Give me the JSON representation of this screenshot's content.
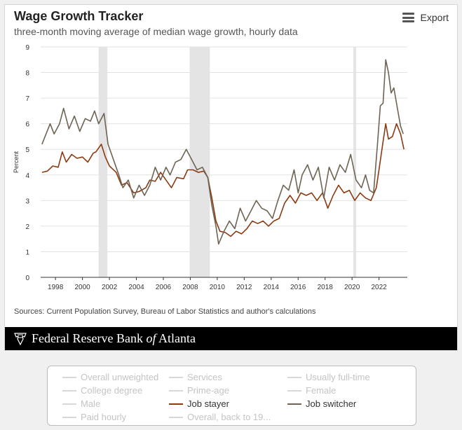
{
  "header": {
    "title": "Wage Growth Tracker",
    "subtitle": "three-month moving average of median wage growth, hourly data",
    "export_label": "Export"
  },
  "sources": "Sources: Current Population Survey, Bureau of Labor Statistics and author's calculations",
  "footer": {
    "brand_pre": "Federal Reserve Bank",
    "brand_of": "of",
    "brand_post": "Atlanta"
  },
  "colors": {
    "job_stayer": "#8b3a12",
    "job_switcher": "#6e6453",
    "recession": "#e4e4e4"
  },
  "legend": [
    {
      "label": "Overall unweighted",
      "active": false
    },
    {
      "label": "Services",
      "active": false
    },
    {
      "label": "Usually full-time",
      "active": false
    },
    {
      "label": "College degree",
      "active": false
    },
    {
      "label": "Prime-age",
      "active": false
    },
    {
      "label": "Female",
      "active": false
    },
    {
      "label": "Male",
      "active": false
    },
    {
      "label": "Job stayer",
      "active": true,
      "color": "#8b3a12"
    },
    {
      "label": "Job switcher",
      "active": true,
      "color": "#6e6453"
    },
    {
      "label": "Paid hourly",
      "active": false
    },
    {
      "label": "Overall, back to 19...",
      "active": false
    }
  ],
  "chart_data": {
    "type": "line",
    "ylabel": "Percent",
    "xlabel": "",
    "ylim": [
      0,
      9
    ],
    "xlim": [
      1996.9,
      2024.1
    ],
    "y_ticks": [
      "0",
      "1",
      "2",
      "3",
      "4",
      "5",
      "6",
      "7",
      "8",
      "9"
    ],
    "x_ticks": [
      "1998",
      "2000",
      "2002",
      "2004",
      "2006",
      "2008",
      "2010",
      "2012",
      "2014",
      "2016",
      "2018",
      "2020",
      "2022"
    ],
    "grid": "horizontal",
    "recessions": [
      [
        2001.2,
        2001.85
      ],
      [
        2007.95,
        2009.45
      ],
      [
        2020.1,
        2020.3
      ]
    ],
    "series": [
      {
        "name": "Job stayer",
        "color": "#8b3a12",
        "points": [
          [
            1997.0,
            4.1
          ],
          [
            1997.4,
            4.15
          ],
          [
            1997.8,
            4.35
          ],
          [
            1998.2,
            4.3
          ],
          [
            1998.5,
            4.9
          ],
          [
            1998.8,
            4.5
          ],
          [
            1999.2,
            4.8
          ],
          [
            1999.6,
            4.65
          ],
          [
            2000.0,
            4.7
          ],
          [
            2000.4,
            4.5
          ],
          [
            2000.8,
            4.85
          ],
          [
            2001.0,
            4.9
          ],
          [
            2001.4,
            5.2
          ],
          [
            2001.7,
            4.7
          ],
          [
            2002.0,
            4.35
          ],
          [
            2002.5,
            4.1
          ],
          [
            2002.9,
            3.6
          ],
          [
            2003.3,
            3.7
          ],
          [
            2003.8,
            3.3
          ],
          [
            2004.2,
            3.35
          ],
          [
            2004.7,
            3.5
          ],
          [
            2005.0,
            3.8
          ],
          [
            2005.4,
            3.75
          ],
          [
            2005.8,
            4.1
          ],
          [
            2006.2,
            3.8
          ],
          [
            2006.6,
            3.5
          ],
          [
            2007.0,
            3.9
          ],
          [
            2007.5,
            3.85
          ],
          [
            2007.8,
            4.2
          ],
          [
            2008.2,
            4.2
          ],
          [
            2008.6,
            4.1
          ],
          [
            2009.0,
            4.15
          ],
          [
            2009.3,
            3.9
          ],
          [
            2009.6,
            3.1
          ],
          [
            2009.9,
            2.2
          ],
          [
            2010.2,
            1.8
          ],
          [
            2010.6,
            1.75
          ],
          [
            2011.0,
            1.6
          ],
          [
            2011.4,
            1.8
          ],
          [
            2011.8,
            1.7
          ],
          [
            2012.2,
            1.9
          ],
          [
            2012.6,
            2.2
          ],
          [
            2013.0,
            2.1
          ],
          [
            2013.4,
            2.2
          ],
          [
            2013.8,
            2.0
          ],
          [
            2014.2,
            2.2
          ],
          [
            2014.6,
            2.3
          ],
          [
            2015.0,
            2.9
          ],
          [
            2015.4,
            3.2
          ],
          [
            2015.8,
            2.9
          ],
          [
            2016.2,
            3.3
          ],
          [
            2016.6,
            3.2
          ],
          [
            2017.0,
            3.3
          ],
          [
            2017.4,
            3.0
          ],
          [
            2017.8,
            3.3
          ],
          [
            2018.2,
            2.7
          ],
          [
            2018.6,
            3.2
          ],
          [
            2019.0,
            3.6
          ],
          [
            2019.4,
            3.3
          ],
          [
            2019.8,
            3.4
          ],
          [
            2020.2,
            3.0
          ],
          [
            2020.6,
            3.3
          ],
          [
            2021.0,
            3.1
          ],
          [
            2021.4,
            3.0
          ],
          [
            2021.8,
            3.5
          ],
          [
            2022.0,
            4.2
          ],
          [
            2022.3,
            5.3
          ],
          [
            2022.5,
            6.0
          ],
          [
            2022.7,
            5.4
          ],
          [
            2023.0,
            5.5
          ],
          [
            2023.3,
            6.0
          ],
          [
            2023.6,
            5.6
          ],
          [
            2023.85,
            5.0
          ]
        ]
      },
      {
        "name": "Job switcher",
        "color": "#6e6453",
        "points": [
          [
            1997.0,
            5.2
          ],
          [
            1997.3,
            5.6
          ],
          [
            1997.6,
            6.0
          ],
          [
            1997.9,
            5.6
          ],
          [
            1998.3,
            6.0
          ],
          [
            1998.6,
            6.6
          ],
          [
            1999.0,
            5.8
          ],
          [
            1999.4,
            6.3
          ],
          [
            1999.8,
            5.7
          ],
          [
            2000.2,
            6.2
          ],
          [
            2000.6,
            6.1
          ],
          [
            2000.9,
            6.5
          ],
          [
            2001.2,
            6.0
          ],
          [
            2001.6,
            6.4
          ],
          [
            2001.9,
            5.2
          ],
          [
            2002.3,
            4.6
          ],
          [
            2002.7,
            4.0
          ],
          [
            2003.0,
            3.5
          ],
          [
            2003.4,
            3.8
          ],
          [
            2003.8,
            3.1
          ],
          [
            2004.2,
            3.6
          ],
          [
            2004.6,
            3.2
          ],
          [
            2005.0,
            3.6
          ],
          [
            2005.4,
            4.3
          ],
          [
            2005.8,
            3.8
          ],
          [
            2006.2,
            4.3
          ],
          [
            2006.5,
            4.0
          ],
          [
            2006.9,
            4.5
          ],
          [
            2007.3,
            4.6
          ],
          [
            2007.7,
            5.0
          ],
          [
            2008.1,
            4.6
          ],
          [
            2008.5,
            4.2
          ],
          [
            2008.9,
            4.3
          ],
          [
            2009.3,
            3.9
          ],
          [
            2009.6,
            2.8
          ],
          [
            2009.9,
            2.0
          ],
          [
            2010.1,
            1.3
          ],
          [
            2010.5,
            1.8
          ],
          [
            2010.9,
            2.2
          ],
          [
            2011.3,
            1.9
          ],
          [
            2011.7,
            2.7
          ],
          [
            2012.1,
            2.2
          ],
          [
            2012.5,
            2.6
          ],
          [
            2012.9,
            3.0
          ],
          [
            2013.3,
            2.7
          ],
          [
            2013.7,
            2.6
          ],
          [
            2014.1,
            2.3
          ],
          [
            2014.5,
            3.0
          ],
          [
            2014.9,
            3.6
          ],
          [
            2015.3,
            3.4
          ],
          [
            2015.7,
            4.2
          ],
          [
            2016.0,
            3.3
          ],
          [
            2016.3,
            4.0
          ],
          [
            2016.7,
            4.4
          ],
          [
            2017.1,
            3.8
          ],
          [
            2017.5,
            4.3
          ],
          [
            2017.9,
            3.1
          ],
          [
            2018.3,
            4.3
          ],
          [
            2018.7,
            3.8
          ],
          [
            2019.1,
            4.4
          ],
          [
            2019.5,
            4.1
          ],
          [
            2019.9,
            4.8
          ],
          [
            2020.3,
            3.8
          ],
          [
            2020.7,
            3.5
          ],
          [
            2021.0,
            4.0
          ],
          [
            2021.3,
            3.4
          ],
          [
            2021.6,
            3.3
          ],
          [
            2021.9,
            5.3
          ],
          [
            2022.1,
            6.7
          ],
          [
            2022.3,
            6.8
          ],
          [
            2022.5,
            8.5
          ],
          [
            2022.7,
            8.0
          ],
          [
            2022.9,
            7.2
          ],
          [
            2023.1,
            7.4
          ],
          [
            2023.4,
            6.5
          ],
          [
            2023.6,
            5.9
          ],
          [
            2023.8,
            5.6
          ]
        ]
      }
    ]
  }
}
